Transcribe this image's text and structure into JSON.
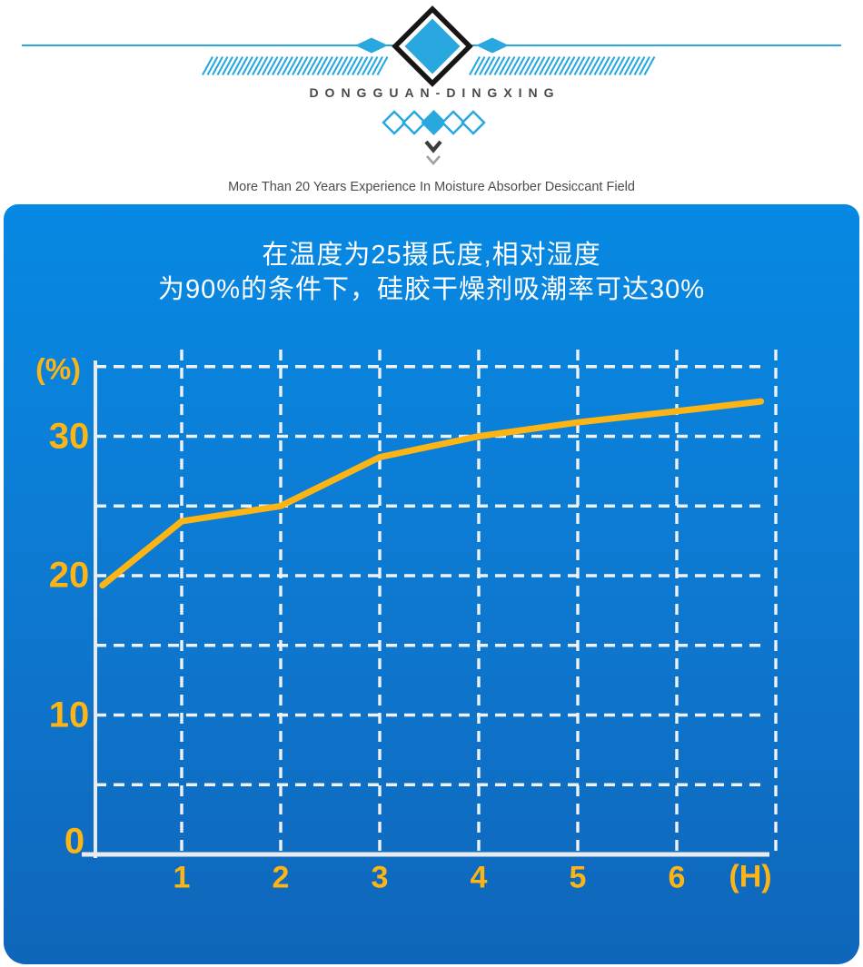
{
  "header": {
    "brand": "DONGGUAN-DINGXING",
    "tagline": "More Than 20 Years Experience In Moisture Absorber Desiccant Field"
  },
  "panel": {
    "title_line1": "在温度为25摄氏度,相对湿度",
    "title_line2": "为90%的条件下，硅胶干燥剂吸潮率可达30%"
  },
  "chart_data": {
    "type": "line",
    "title": "在温度为25摄氏度,相对湿度为90%的条件下，硅胶干燥剂吸潮率可达30%",
    "xlabel": "(H)",
    "ylabel": "(%)",
    "xlim": [
      0,
      7
    ],
    "ylim": [
      0,
      35
    ],
    "x_ticks": [
      1,
      2,
      3,
      4,
      5,
      6
    ],
    "y_ticks": [
      0,
      10,
      20,
      30
    ],
    "grid_x": [
      1,
      2,
      3,
      4,
      5,
      6,
      7
    ],
    "grid_y": [
      5,
      10,
      15,
      20,
      25,
      30,
      35
    ],
    "grid": "dashed",
    "legend_position": "none",
    "series": [
      {
        "name": "silica-gel-moisture-absorption-rate",
        "x": [
          0.2,
          1,
          2,
          3,
          4,
          5,
          6,
          6.85
        ],
        "y": [
          19.3,
          23.9,
          25.0,
          28.5,
          30.0,
          31.0,
          31.8,
          32.5
        ]
      }
    ]
  },
  "colors": {
    "accent_blue": "#29a8e0",
    "panel_top": "#0689e3",
    "panel_mid": "#0d7bd3",
    "panel_bottom": "#0f66ba",
    "line_yellow": "#fcb515",
    "grid_white": "#eef2f6",
    "axis_white": "#e8ecf0",
    "brand_text": "#4a4a4a",
    "diamond_border": "#161616",
    "chevron_dark": "#3c3c3c",
    "chevron_light": "#9ca2a6"
  }
}
